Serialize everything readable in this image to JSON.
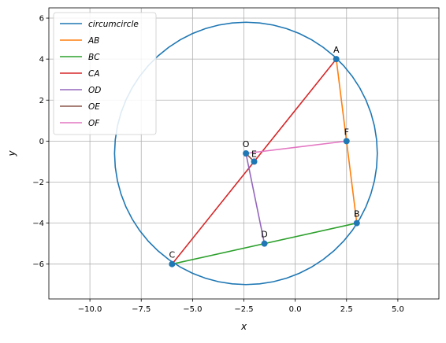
{
  "chart_data": {
    "type": "line",
    "title": "",
    "xlabel": "x",
    "ylabel": "y",
    "xlim": [
      -12,
      7
    ],
    "ylim": [
      -7.7,
      6.5
    ],
    "xticks": [
      -10.0,
      -7.5,
      -5.0,
      -2.5,
      0.0,
      2.5,
      5.0
    ],
    "xtick_labels": [
      "−10.0",
      "−7.5",
      "−5.0",
      "−2.5",
      "0.0",
      "2.5",
      "5.0"
    ],
    "yticks": [
      -6,
      -4,
      -2,
      0,
      2,
      4,
      6
    ],
    "ytick_labels": [
      "−6",
      "−4",
      "−2",
      "0",
      "2",
      "4",
      "6"
    ],
    "grid": true,
    "legend_position": "top-left",
    "circle": {
      "name": "circumcircle",
      "center": [
        -2.4,
        -0.6
      ],
      "radius": 6.4,
      "color": "#1f77b4"
    },
    "series": [
      {
        "name": "AB",
        "color": "#ff7f0e",
        "x": [
          2,
          3
        ],
        "y": [
          4,
          -4
        ]
      },
      {
        "name": "BC",
        "color": "#2ca02c",
        "x": [
          3,
          -6
        ],
        "y": [
          -4,
          -6
        ]
      },
      {
        "name": "CA",
        "color": "#d62728",
        "x": [
          -6,
          2
        ],
        "y": [
          -6,
          4
        ]
      },
      {
        "name": "OD",
        "color": "#9467bd",
        "x": [
          -2.4,
          -1.5
        ],
        "y": [
          -0.6,
          -5
        ]
      },
      {
        "name": "OE",
        "color": "#8c564b",
        "x": [
          -2.4,
          -2
        ],
        "y": [
          -0.6,
          -1
        ]
      },
      {
        "name": "OF",
        "color": "#e377c2",
        "x": [
          -2.4,
          2.5
        ],
        "y": [
          -0.6,
          0
        ]
      }
    ],
    "points": [
      {
        "label": "A",
        "x": 2,
        "y": 4
      },
      {
        "label": "B",
        "x": 3,
        "y": -4
      },
      {
        "label": "C",
        "x": -6,
        "y": -6
      },
      {
        "label": "D",
        "x": -1.5,
        "y": -5
      },
      {
        "label": "E",
        "x": -2,
        "y": -1
      },
      {
        "label": "F",
        "x": 2.5,
        "y": 0
      },
      {
        "label": "O",
        "x": -2.4,
        "y": -0.6
      }
    ],
    "point_color": "#1f77b4"
  }
}
